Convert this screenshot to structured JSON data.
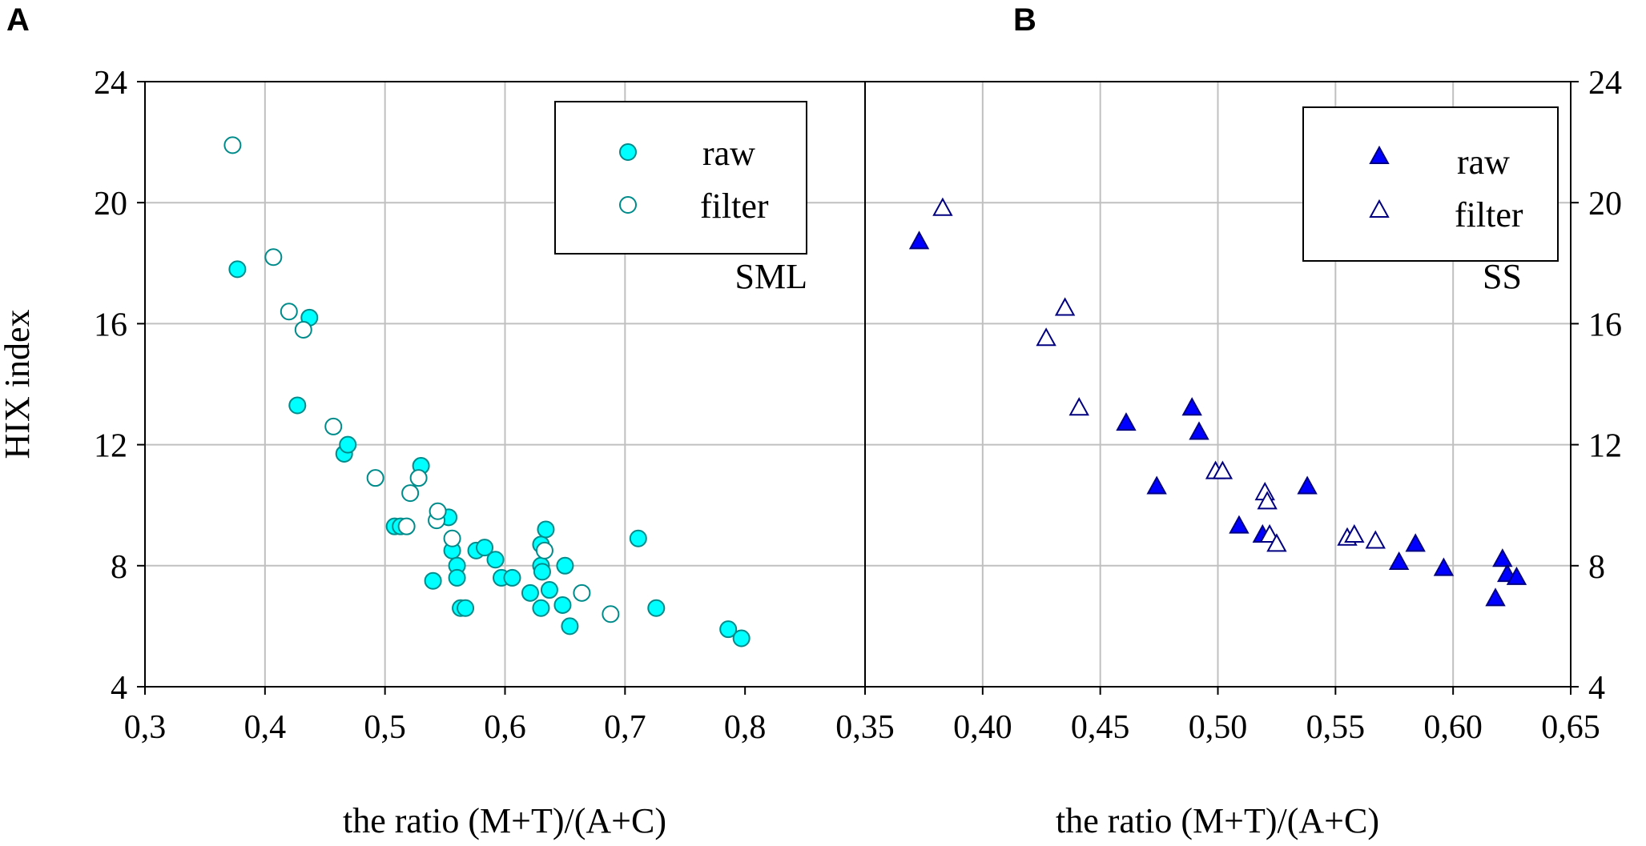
{
  "colors": {
    "cyan": "#00ffff",
    "cyan_edge": "#008b8b",
    "blue": "#0000ff",
    "blue_edge": "#000080",
    "grid": "#c0c0c0"
  },
  "chart_data": [
    {
      "panel": "A",
      "type": "scatter",
      "annotation": "SML",
      "xlabel": "the ratio (M+T)/(A+C)",
      "ylabel": "HIX index",
      "xlim": [
        0.3,
        0.9
      ],
      "ylim": [
        4,
        24
      ],
      "xticks": [
        0.3,
        0.4,
        0.5,
        0.6,
        0.7,
        0.8
      ],
      "xtick_labels": [
        "0,3",
        "0,4",
        "0,5",
        "0,6",
        "0,7",
        "0,8"
      ],
      "yticks": [
        4,
        8,
        12,
        16,
        20,
        24
      ],
      "ytick_labels": [
        "4",
        "8",
        "12",
        "16",
        "20",
        "24"
      ],
      "legend_position": "top-right",
      "grid": true,
      "series": [
        {
          "name": "raw",
          "marker": "circle-filled",
          "points": [
            [
              0.377,
              17.8
            ],
            [
              0.427,
              13.3
            ],
            [
              0.437,
              16.2
            ],
            [
              0.466,
              11.7
            ],
            [
              0.469,
              12.0
            ],
            [
              0.508,
              9.3
            ],
            [
              0.513,
              9.3
            ],
            [
              0.53,
              11.3
            ],
            [
              0.54,
              7.5
            ],
            [
              0.553,
              9.6
            ],
            [
              0.556,
              8.5
            ],
            [
              0.56,
              8.0
            ],
            [
              0.56,
              7.6
            ],
            [
              0.563,
              6.6
            ],
            [
              0.567,
              6.6
            ],
            [
              0.576,
              8.5
            ],
            [
              0.583,
              8.6
            ],
            [
              0.592,
              8.2
            ],
            [
              0.597,
              7.6
            ],
            [
              0.606,
              7.6
            ],
            [
              0.621,
              7.1
            ],
            [
              0.63,
              6.6
            ],
            [
              0.63,
              8.7
            ],
            [
              0.63,
              8.0
            ],
            [
              0.631,
              7.8
            ],
            [
              0.634,
              9.2
            ],
            [
              0.637,
              7.2
            ],
            [
              0.648,
              6.7
            ],
            [
              0.65,
              8.0
            ],
            [
              0.654,
              6.0
            ],
            [
              0.711,
              8.9
            ],
            [
              0.726,
              6.6
            ],
            [
              0.786,
              5.9
            ],
            [
              0.797,
              5.6
            ]
          ]
        },
        {
          "name": "filter",
          "marker": "circle-open",
          "points": [
            [
              0.373,
              21.9
            ],
            [
              0.407,
              18.2
            ],
            [
              0.42,
              16.4
            ],
            [
              0.432,
              15.8
            ],
            [
              0.457,
              12.6
            ],
            [
              0.492,
              10.9
            ],
            [
              0.518,
              9.3
            ],
            [
              0.521,
              10.4
            ],
            [
              0.528,
              10.9
            ],
            [
              0.543,
              9.5
            ],
            [
              0.544,
              9.8
            ],
            [
              0.556,
              8.9
            ],
            [
              0.633,
              8.5
            ],
            [
              0.664,
              7.1
            ],
            [
              0.688,
              6.4
            ]
          ]
        }
      ]
    },
    {
      "panel": "B",
      "type": "scatter",
      "annotation": "SS",
      "xlabel": "the ratio (M+T)/(A+C)",
      "ylabel": "",
      "xlim": [
        0.35,
        0.65
      ],
      "ylim": [
        4,
        24
      ],
      "xticks": [
        0.35,
        0.4,
        0.45,
        0.5,
        0.55,
        0.6,
        0.65
      ],
      "xtick_labels": [
        "0,35",
        "0,40",
        "0,45",
        "0,50",
        "0,55",
        "0,60",
        "0,65"
      ],
      "yticks": [
        4,
        8,
        12,
        16,
        20,
        24
      ],
      "ytick_labels": [
        "4",
        "8",
        "12",
        "16",
        "20",
        "24"
      ],
      "legend_position": "top-right",
      "grid": true,
      "series": [
        {
          "name": "raw",
          "marker": "triangle-filled",
          "points": [
            [
              0.373,
              18.7
            ],
            [
              0.461,
              12.7
            ],
            [
              0.474,
              10.6
            ],
            [
              0.489,
              13.2
            ],
            [
              0.492,
              12.4
            ],
            [
              0.509,
              9.3
            ],
            [
              0.519,
              9.0
            ],
            [
              0.538,
              10.6
            ],
            [
              0.577,
              8.1
            ],
            [
              0.584,
              8.7
            ],
            [
              0.596,
              7.9
            ],
            [
              0.618,
              6.9
            ],
            [
              0.621,
              8.2
            ],
            [
              0.623,
              7.7
            ],
            [
              0.627,
              7.6
            ]
          ]
        },
        {
          "name": "filter",
          "marker": "triangle-open",
          "points": [
            [
              0.383,
              19.8
            ],
            [
              0.427,
              15.5
            ],
            [
              0.435,
              16.5
            ],
            [
              0.441,
              13.2
            ],
            [
              0.499,
              11.1
            ],
            [
              0.502,
              11.1
            ],
            [
              0.52,
              10.4
            ],
            [
              0.521,
              10.1
            ],
            [
              0.522,
              9.0
            ],
            [
              0.525,
              8.7
            ],
            [
              0.555,
              8.9
            ],
            [
              0.558,
              9.0
            ],
            [
              0.567,
              8.8
            ]
          ]
        }
      ]
    }
  ]
}
